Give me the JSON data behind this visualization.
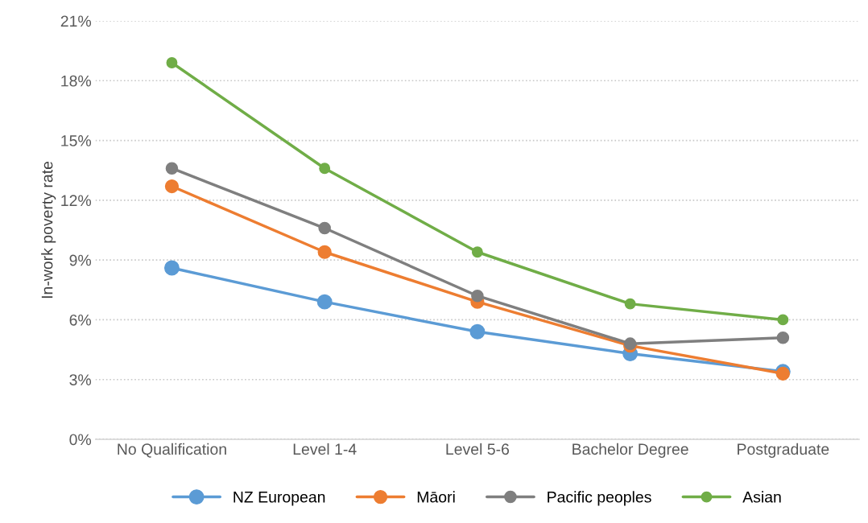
{
  "chart_data": {
    "type": "line",
    "ylabel": "In-work poverty rate",
    "categories": [
      "No Qualification",
      "Level 1-4",
      "Level 5-6",
      "Bachelor Degree",
      "Postgraduate"
    ],
    "series": [
      {
        "name": "NZ European",
        "color": "#5b9bd5",
        "values": [
          8.6,
          6.9,
          5.4,
          4.3,
          3.4
        ]
      },
      {
        "name": "Māori",
        "color": "#ed7d31",
        "values": [
          12.7,
          9.4,
          6.9,
          4.7,
          3.3
        ]
      },
      {
        "name": "Pacific peoples",
        "color": "#7f7f7f",
        "values": [
          13.6,
          10.6,
          7.2,
          4.8,
          5.1
        ]
      },
      {
        "name": "Asian",
        "color": "#70ad47",
        "values": [
          18.9,
          13.6,
          9.4,
          6.8,
          6.0
        ]
      }
    ],
    "ylim": [
      0,
      21
    ],
    "yticks": [
      {
        "value": 0,
        "label": "0%"
      },
      {
        "value": 3,
        "label": "3%"
      },
      {
        "value": 6,
        "label": "6%"
      },
      {
        "value": 9,
        "label": "9%"
      },
      {
        "value": 12,
        "label": "12%"
      },
      {
        "value": 15,
        "label": "15%"
      },
      {
        "value": 18,
        "label": "18%"
      },
      {
        "value": 21,
        "label": "21%"
      }
    ],
    "grid": "y",
    "legend": "bottom",
    "marker": "circle",
    "line_style": "solid"
  }
}
